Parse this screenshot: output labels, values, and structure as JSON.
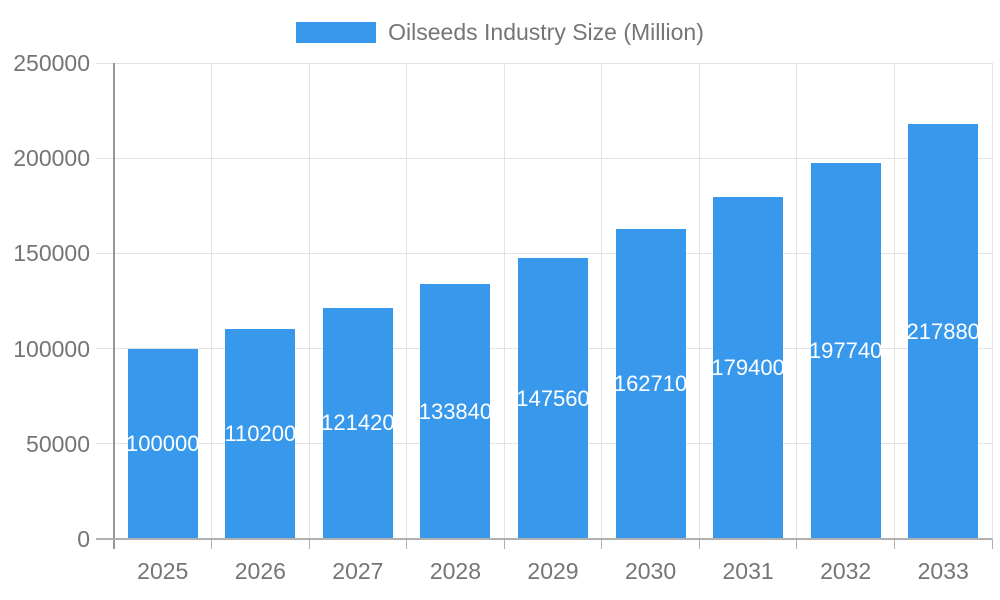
{
  "chart_data": {
    "type": "bar",
    "title": "Oilseeds Industry Size (Million)",
    "legend_position": "top",
    "categories": [
      "2025",
      "2026",
      "2027",
      "2028",
      "2029",
      "2030",
      "2031",
      "2032",
      "2033"
    ],
    "values": [
      100000,
      110200,
      121420,
      133840,
      147560,
      162710,
      179400,
      197740,
      217880
    ],
    "value_labels": [
      "100000",
      "110200",
      "121420",
      "133840",
      "147560",
      "162710",
      "179400",
      "197740",
      "217880"
    ],
    "xlabel": "",
    "ylabel": "",
    "ylim": [
      0,
      250000
    ],
    "yticks": [
      0,
      50000,
      100000,
      150000,
      200000,
      250000
    ],
    "ytick_labels": [
      "0",
      "50000",
      "100000",
      "150000",
      "200000",
      "250000"
    ],
    "grid": true,
    "colors": {
      "bar": "#3899EC",
      "grid": "#e2e2e2",
      "axis_y": "#969696",
      "axis_x": "#b0b0b0",
      "tick_text": "#757575",
      "bar_label": "#ffffff",
      "background": "#ffffff"
    }
  }
}
